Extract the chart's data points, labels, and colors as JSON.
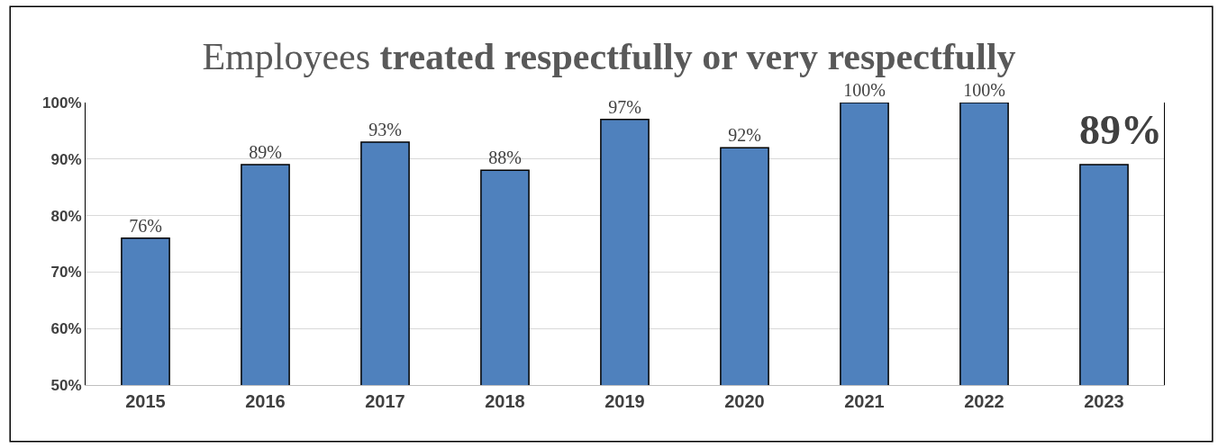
{
  "chart_data": {
    "type": "bar",
    "title": "Employees treated respectfully or very respectfully",
    "categories": [
      "2015",
      "2016",
      "2017",
      "2018",
      "2019",
      "2020",
      "2021",
      "2022",
      "2023"
    ],
    "values": [
      76,
      89,
      93,
      88,
      97,
      92,
      100,
      100,
      89
    ],
    "value_labels": [
      "76%",
      "89%",
      "93%",
      "88%",
      "97%",
      "92%",
      "100%",
      "100%",
      null
    ],
    "color": "#4f81bd",
    "ylim": [
      50,
      100
    ],
    "yticks": [
      {
        "value": 50,
        "label": "50%"
      },
      {
        "value": 60,
        "label": "60%"
      },
      {
        "value": 70,
        "label": "70%"
      },
      {
        "value": 80,
        "label": "80%"
      },
      {
        "value": 90,
        "label": "90%"
      },
      {
        "value": 100,
        "label": "100%"
      }
    ],
    "grid": "y",
    "annotations": [
      "89%"
    ]
  }
}
